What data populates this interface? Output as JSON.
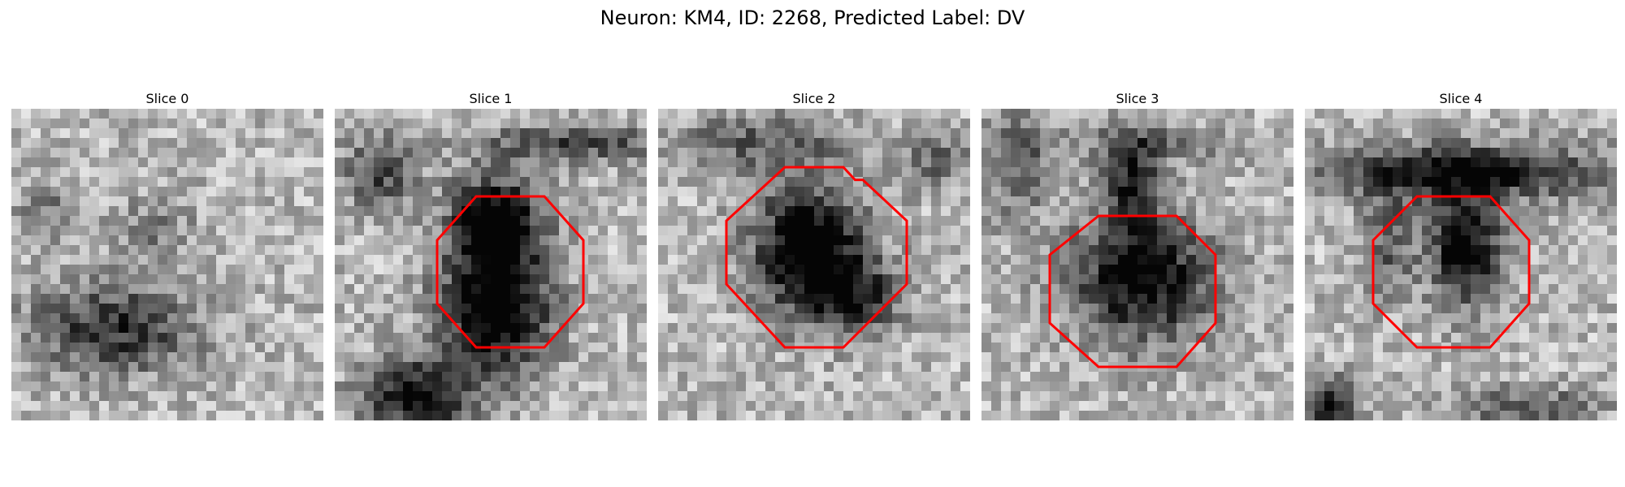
{
  "figure": {
    "title": "Neuron: KM4, ID: 2268, Predicted Label: DV",
    "colors": {
      "roi": "#ff0000",
      "background": "#ffffff"
    },
    "colormap": "gray"
  },
  "panels": [
    {
      "title": "Slice 0",
      "has_roi": false
    },
    {
      "title": "Slice 1",
      "has_roi": true
    },
    {
      "title": "Slice 2",
      "has_roi": true
    },
    {
      "title": "Slice 3",
      "has_roi": true
    },
    {
      "title": "Slice 4",
      "has_roi": true
    }
  ]
}
